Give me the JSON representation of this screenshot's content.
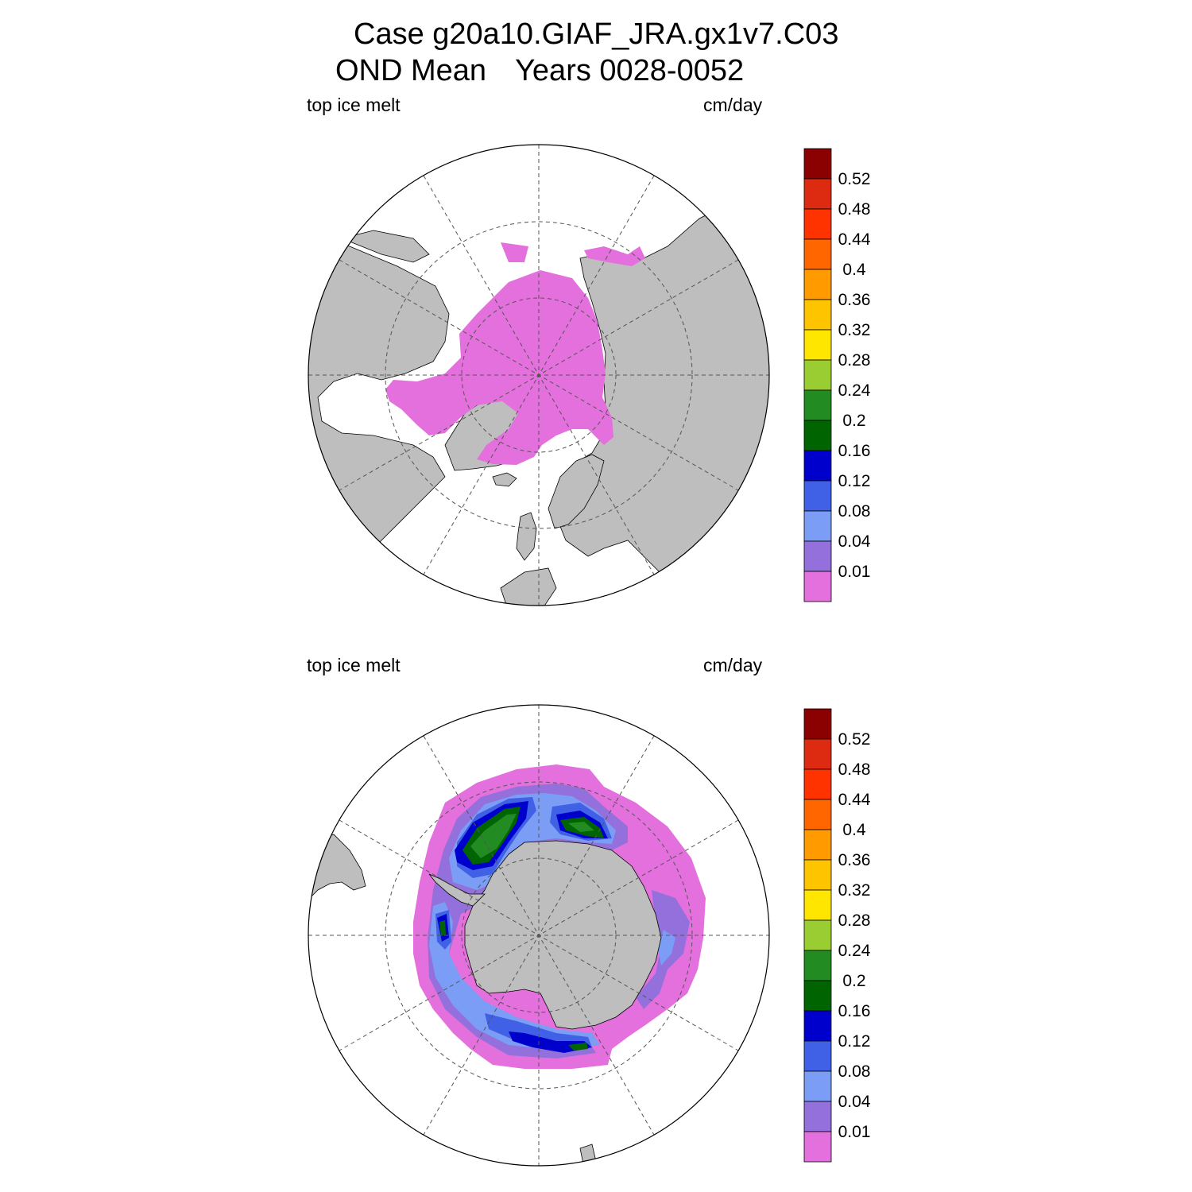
{
  "title": {
    "line1": "Case g20a10.GIAF_JRA.gx1v7.C03",
    "season": "OND Mean",
    "years": "Years 0028-0052"
  },
  "panels": [
    {
      "id": "north",
      "hemisphere": "Northern Hemisphere",
      "variable": "top ice melt",
      "units": "cm/day"
    },
    {
      "id": "south",
      "hemisphere": "Southern Hemisphere",
      "variable": "top ice melt",
      "units": "cm/day"
    }
  ],
  "colors": {
    "land": "#bebebe",
    "ocean": "#ffffff",
    "ice_lowest": "#e370dc"
  },
  "colorbar": {
    "levels": [
      "0.01",
      "0.04",
      "0.08",
      "0.12",
      "0.16",
      "0.2",
      "0.24",
      "0.28",
      "0.32",
      "0.36",
      "0.4",
      "0.44",
      "0.48",
      "0.52"
    ],
    "colors": [
      "#e370dc",
      "#9370db",
      "#7b9df5",
      "#4060e6",
      "#0000cd",
      "#006400",
      "#228b22",
      "#9acd32",
      "#ffe600",
      "#ffc400",
      "#ff9a00",
      "#ff6600",
      "#ff3300",
      "#dd2b12",
      "#8b0000"
    ]
  }
}
